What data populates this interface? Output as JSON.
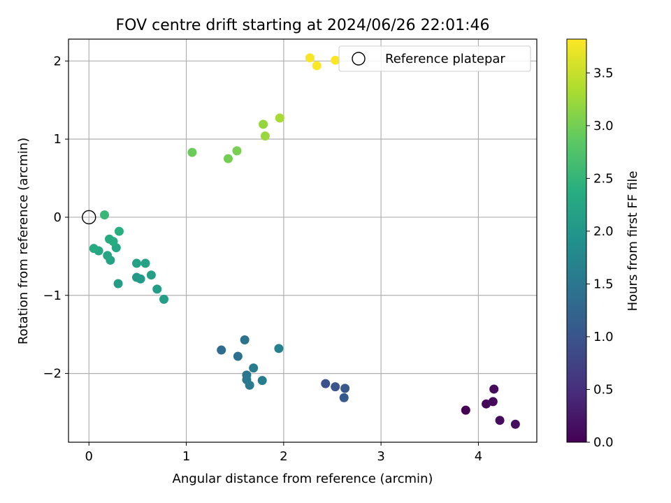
{
  "chart_data": {
    "type": "scatter",
    "title": "FOV centre drift starting at 2024/06/26 22:01:46",
    "xlabel": "Angular distance from reference (arcmin)",
    "ylabel": "Rotation from reference (arcmin)",
    "xlim": [
      -0.21,
      4.6
    ],
    "ylim": [
      -2.88,
      2.28
    ],
    "xticks": [
      0,
      1,
      2,
      3,
      4
    ],
    "yticks": [
      2,
      1,
      0,
      -1,
      -2
    ],
    "grid": true,
    "colormap": "viridis",
    "colorbar": {
      "label": "Hours from first FF file",
      "range": [
        0.0,
        3.82
      ],
      "ticks": [
        "0.0",
        "0.5",
        "1.0",
        "1.5",
        "2.0",
        "2.5",
        "3.0",
        "3.5"
      ]
    },
    "legend": {
      "placement": "top-right",
      "entries": [
        "Reference platepar"
      ]
    },
    "reference_point": {
      "x": 0,
      "y": 0
    },
    "points": [
      {
        "x": 3.87,
        "y": -2.47,
        "c": 0.0
      },
      {
        "x": 4.08,
        "y": -2.39,
        "c": 0.05
      },
      {
        "x": 4.15,
        "y": -2.36,
        "c": 0.08
      },
      {
        "x": 4.16,
        "y": -2.2,
        "c": 0.1
      },
      {
        "x": 4.22,
        "y": -2.6,
        "c": 0.12
      },
      {
        "x": 4.38,
        "y": -2.65,
        "c": 0.15
      },
      {
        "x": 2.43,
        "y": -2.13,
        "c": 0.95
      },
      {
        "x": 2.53,
        "y": -2.17,
        "c": 1.0
      },
      {
        "x": 2.63,
        "y": -2.19,
        "c": 1.05
      },
      {
        "x": 2.62,
        "y": -2.31,
        "c": 1.08
      },
      {
        "x": 1.36,
        "y": -1.7,
        "c": 1.35
      },
      {
        "x": 1.53,
        "y": -1.78,
        "c": 1.4
      },
      {
        "x": 1.6,
        "y": -1.57,
        "c": 1.45
      },
      {
        "x": 1.62,
        "y": -2.02,
        "c": 1.5
      },
      {
        "x": 1.62,
        "y": -2.08,
        "c": 1.52
      },
      {
        "x": 1.65,
        "y": -2.15,
        "c": 1.55
      },
      {
        "x": 1.69,
        "y": -1.93,
        "c": 1.58
      },
      {
        "x": 1.78,
        "y": -2.09,
        "c": 1.6
      },
      {
        "x": 1.95,
        "y": -1.68,
        "c": 1.65
      },
      {
        "x": 0.49,
        "y": -0.77,
        "c": 2.05
      },
      {
        "x": 0.53,
        "y": -0.79,
        "c": 2.08
      },
      {
        "x": 0.3,
        "y": -0.85,
        "c": 2.1
      },
      {
        "x": 0.7,
        "y": -0.92,
        "c": 2.1
      },
      {
        "x": 0.77,
        "y": -1.05,
        "c": 2.12
      },
      {
        "x": 0.64,
        "y": -0.74,
        "c": 2.15
      },
      {
        "x": 0.49,
        "y": -0.59,
        "c": 2.15
      },
      {
        "x": 0.58,
        "y": -0.59,
        "c": 2.18
      },
      {
        "x": 0.22,
        "y": -0.55,
        "c": 2.2
      },
      {
        "x": 0.19,
        "y": -0.49,
        "c": 2.22
      },
      {
        "x": 0.28,
        "y": -0.39,
        "c": 2.25
      },
      {
        "x": 0.1,
        "y": -0.43,
        "c": 2.28
      },
      {
        "x": 0.05,
        "y": -0.4,
        "c": 2.3
      },
      {
        "x": 0.21,
        "y": -0.28,
        "c": 2.32
      },
      {
        "x": 0.25,
        "y": -0.31,
        "c": 2.35
      },
      {
        "x": 0.31,
        "y": -0.18,
        "c": 2.4
      },
      {
        "x": 0.16,
        "y": 0.03,
        "c": 2.55
      },
      {
        "x": 1.06,
        "y": 0.83,
        "c": 2.95
      },
      {
        "x": 1.43,
        "y": 0.75,
        "c": 3.0
      },
      {
        "x": 1.52,
        "y": 0.85,
        "c": 3.02
      },
      {
        "x": 1.79,
        "y": 1.19,
        "c": 3.2
      },
      {
        "x": 1.81,
        "y": 1.04,
        "c": 3.22
      },
      {
        "x": 1.96,
        "y": 1.27,
        "c": 3.3
      },
      {
        "x": 2.27,
        "y": 2.04,
        "c": 3.78
      },
      {
        "x": 2.34,
        "y": 1.94,
        "c": 3.8
      },
      {
        "x": 2.53,
        "y": 2.01,
        "c": 3.82
      }
    ]
  }
}
